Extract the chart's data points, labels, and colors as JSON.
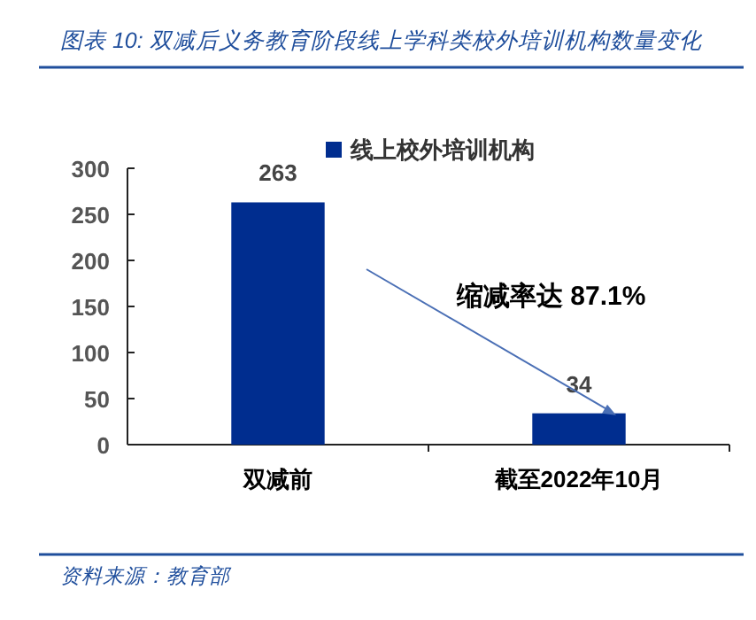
{
  "chart_data": {
    "type": "bar",
    "title": "图表 10:  双减后义务教育阶段线上学科类校外培训机构数量变化",
    "categories": [
      "双减前",
      "截至2022年10月"
    ],
    "series": [
      {
        "name": "线上校外培训机构",
        "color": "#002d8f",
        "values": [
          263,
          34
        ]
      }
    ],
    "ylim": [
      0,
      300
    ],
    "yticks": [
      0,
      50,
      100,
      150,
      200,
      250,
      300
    ],
    "data_labels": true,
    "legend": "top",
    "grid": false,
    "annotations": [
      "缩减率达 87.1%",
      "资料来源：教育部"
    ]
  }
}
